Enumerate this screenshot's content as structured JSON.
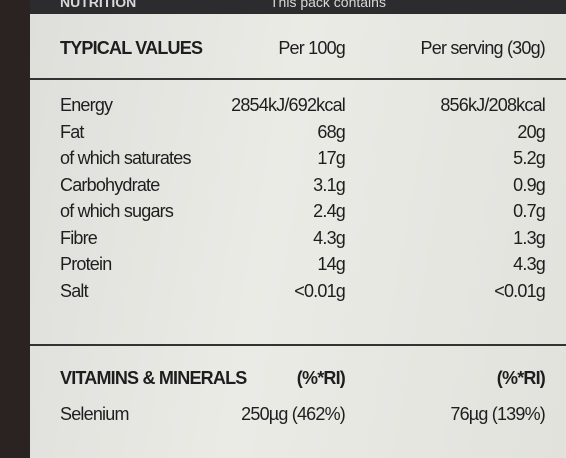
{
  "header": {
    "title": "NUTRITION",
    "note": "This pack contains"
  },
  "table": {
    "columns": [
      "TYPICAL VALUES",
      "Per 100g",
      "Per serving (30g)"
    ],
    "rows": [
      [
        "Energy",
        "2854kJ/692kcal",
        "856kJ/208kcal"
      ],
      [
        "Fat",
        "68g",
        "20g"
      ],
      [
        "of which saturates",
        "17g",
        "5.2g"
      ],
      [
        "Carbohydrate",
        "3.1g",
        "0.9g"
      ],
      [
        "of which sugars",
        "2.4g",
        "0.7g"
      ],
      [
        "Fibre",
        "4.3g",
        "1.3g"
      ],
      [
        "Protein",
        "14g",
        "4.3g"
      ],
      [
        "Salt",
        "<0.01g",
        "<0.01g"
      ]
    ]
  },
  "vitamins": {
    "columns": [
      "VITAMINS & MINERALS",
      "(%*RI)",
      "(%*RI)"
    ],
    "rows": [
      [
        "Selenium",
        "250µg (462%)",
        "76µg (139%)"
      ]
    ]
  }
}
